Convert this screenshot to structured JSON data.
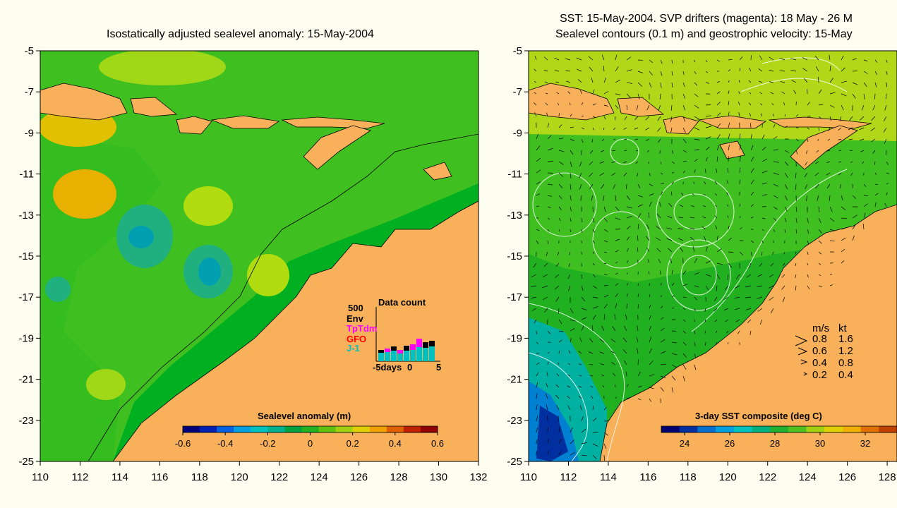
{
  "left_panel": {
    "title": "Isostatically adjusted sealevel anomaly: 15-May-2004",
    "colorbar": {
      "label": "Sealevel anomaly (m)",
      "ticks": [
        "-0.6",
        "-0.4",
        "-0.2",
        "0",
        "0.2",
        "0.4",
        "0.6"
      ],
      "colors": [
        "#00007a",
        "#0020b0",
        "#0060e0",
        "#00a0e0",
        "#00c0c0",
        "#00b090",
        "#00a040",
        "#20b020",
        "#60c010",
        "#a0d010",
        "#e0d000",
        "#f0a000",
        "#e06000",
        "#c02000",
        "#900000"
      ]
    },
    "data_count": {
      "title": "Data count",
      "scale": "500",
      "legend": [
        {
          "label": "Env",
          "color": "#000000"
        },
        {
          "label": "TpTdm",
          "color": "#ff00ff"
        },
        {
          "label": "GFO",
          "color": "#ff0000"
        },
        {
          "label": "J-1",
          "color": "#00c0c0"
        }
      ],
      "xlabel": "-5days",
      "xticks": [
        "0",
        "5"
      ]
    }
  },
  "right_panel": {
    "title_line1": "SST: 15-May-2004. SVP drifters (magenta): 18 May - 26 M",
    "title_line2": "Sealevel contours (0.1 m) and geostrophic velocity: 15-May",
    "colorbar": {
      "label": "3-day SST composite (deg C)",
      "ticks": [
        "24",
        "26",
        "28",
        "30",
        "32"
      ],
      "colors": [
        "#000070",
        "#0030a0",
        "#0070d0",
        "#00a0e0",
        "#00c0c0",
        "#00b080",
        "#20b030",
        "#50c020",
        "#a0d010",
        "#e0d000",
        "#f0b000",
        "#e07000",
        "#c04000"
      ]
    },
    "velocity_legend": {
      "header_ms": "m/s",
      "header_kt": "kt",
      "rows": [
        {
          "ms": "0.8",
          "kt": "1.6"
        },
        {
          "ms": "0.6",
          "kt": "1.2"
        },
        {
          "ms": "0.4",
          "kt": "0.8"
        },
        {
          "ms": "0.2",
          "kt": "0.4"
        }
      ]
    }
  },
  "axes": {
    "y_ticks": [
      "-5",
      "-7",
      "-9",
      "-11",
      "-13",
      "-15",
      "-17",
      "-19",
      "-21",
      "-23",
      "-25"
    ],
    "x_ticks_left": [
      "110",
      "112",
      "114",
      "116",
      "118",
      "120",
      "122",
      "124",
      "126",
      "128",
      "130",
      "132"
    ],
    "x_ticks_right": [
      "110",
      "112",
      "114",
      "116",
      "118",
      "120",
      "122",
      "124",
      "126",
      "128"
    ]
  },
  "map_colors": {
    "land": "#f8b05a",
    "ocean_base": "#00b020",
    "ocean_light": "#40c020",
    "ocean_pale": "#90d820",
    "cyan": "#00b0a0",
    "blue_deep": "#0040b0"
  }
}
